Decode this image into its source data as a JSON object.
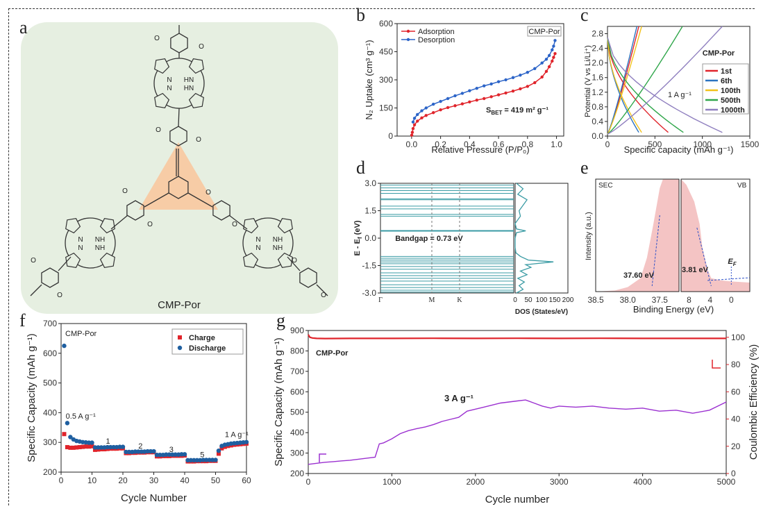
{
  "panel_letters": [
    "a",
    "b",
    "c",
    "d",
    "e",
    "f",
    "g"
  ],
  "panel_a": {
    "label": "CMP-Por",
    "atom_n": "N",
    "atom_hn": "HN",
    "atom_nh": "NH",
    "atom_o": "O"
  },
  "chart_data": [
    {
      "id": "b",
      "type": "line",
      "xlabel": "Relative Pressure (P/P₀)",
      "ylabel": "N₂ Uptake (cm³ g⁻¹)",
      "xlim": [
        -0.1,
        1.05
      ],
      "ylim": [
        0,
        600
      ],
      "xticks": [
        0.0,
        0.2,
        0.4,
        0.6,
        0.8,
        1.0
      ],
      "yticks": [
        0,
        150,
        300,
        450,
        600
      ],
      "tag": "CMP-Por",
      "annotation": "S",
      "annotation_sub": "BET",
      "annotation_rest": " = 419 m² g⁻¹",
      "legend": "top-left",
      "series": [
        {
          "name": "Adsorption",
          "color": "#e0242b",
          "x": [
            0.001,
            0.005,
            0.01,
            0.02,
            0.04,
            0.07,
            0.1,
            0.15,
            0.2,
            0.25,
            0.3,
            0.35,
            0.4,
            0.45,
            0.5,
            0.55,
            0.6,
            0.65,
            0.7,
            0.75,
            0.8,
            0.85,
            0.9,
            0.93,
            0.95,
            0.97,
            0.98,
            0.99
          ],
          "y": [
            5,
            20,
            40,
            60,
            80,
            97,
            110,
            125,
            140,
            152,
            162,
            172,
            182,
            192,
            200,
            210,
            220,
            230,
            240,
            252,
            265,
            285,
            315,
            345,
            370,
            400,
            420,
            440
          ]
        },
        {
          "name": "Desorption",
          "color": "#2c64c8",
          "x": [
            0.99,
            0.98,
            0.97,
            0.95,
            0.93,
            0.9,
            0.85,
            0.8,
            0.75,
            0.7,
            0.65,
            0.6,
            0.55,
            0.5,
            0.45,
            0.4,
            0.35,
            0.3,
            0.25,
            0.2,
            0.15,
            0.1,
            0.07,
            0.04,
            0.02,
            0.01
          ],
          "y": [
            510,
            480,
            460,
            430,
            410,
            390,
            360,
            340,
            325,
            312,
            300,
            290,
            278,
            268,
            255,
            242,
            228,
            215,
            200,
            185,
            170,
            150,
            135,
            115,
            95,
            75
          ]
        }
      ]
    },
    {
      "id": "c",
      "type": "line",
      "xlabel": "Specific capacity (mAh g⁻¹)",
      "ylabel": "Potential (V vs Li/Li⁺)",
      "xlim": [
        0,
        1500
      ],
      "ylim": [
        0,
        3.0
      ],
      "xticks": [
        0,
        500,
        1000,
        1500
      ],
      "yticks": [
        0.0,
        0.4,
        0.8,
        1.2,
        1.6,
        2.0,
        2.4,
        2.8
      ],
      "tag": "CMP-Por",
      "annotation": "1 A g⁻¹",
      "legend": "right",
      "series": [
        {
          "name": "1st",
          "color": "#e0242b",
          "discharge_end": 640,
          "charge_end": 330
        },
        {
          "name": "6th",
          "color": "#2c74c0",
          "discharge_end": 330,
          "charge_end": 310
        },
        {
          "name": "100th",
          "color": "#f2c21b",
          "discharge_end": 360,
          "charge_end": 360
        },
        {
          "name": "500th",
          "color": "#2fa64a",
          "discharge_end": 800,
          "charge_end": 790
        },
        {
          "name": "1000th",
          "color": "#8f7fbf",
          "discharge_end": 1210,
          "charge_end": 1210
        }
      ]
    },
    {
      "id": "d",
      "type": "line",
      "ylabel": "E - Eₓ (eV)",
      "ylabel_main": "E - E",
      "ylabel_sub": "f",
      "ylabel_unit": " (eV)",
      "ylim": [
        -3.0,
        3.0
      ],
      "yticks": [
        -3.0,
        -1.5,
        0.0,
        1.5,
        3.0
      ],
      "kpoints": [
        "Γ",
        "M",
        "K"
      ],
      "annotation": "Bandgap = 0.73 eV",
      "dos_xlabel": "DOS (States/eV)",
      "dos_xticks": [
        0,
        50,
        100,
        150,
        200
      ],
      "bands": [
        -2.95,
        -2.85,
        -2.7,
        -2.55,
        -2.35,
        -2.2,
        -2.05,
        -1.9,
        -1.7,
        -1.55,
        -1.4,
        -1.3,
        -1.2,
        -1.1,
        -1.0,
        0.38,
        0.42,
        1.2,
        1.3,
        1.6,
        1.75,
        2.1,
        2.15,
        2.45,
        2.6,
        2.75,
        2.9
      ],
      "dos": {
        "e": [
          -3.0,
          -2.8,
          -2.6,
          -2.4,
          -2.2,
          -2.0,
          -1.8,
          -1.6,
          -1.45,
          -1.3,
          -1.2,
          -1.0,
          -0.8,
          -0.5,
          0.0,
          0.3,
          0.4,
          0.5,
          0.8,
          1.2,
          1.5,
          1.8,
          2.1,
          2.4,
          2.7,
          3.0
        ],
        "v": [
          5,
          30,
          15,
          35,
          10,
          45,
          20,
          60,
          40,
          145,
          50,
          20,
          3,
          0,
          0,
          5,
          40,
          5,
          0,
          20,
          15,
          30,
          45,
          10,
          30,
          5
        ]
      }
    },
    {
      "id": "e",
      "type": "area",
      "xlabel": "Binding Energy (eV)",
      "ylabel": "Intensity (a.u.)",
      "left": {
        "label": "SEC",
        "xlim": [
          38.5,
          37.2
        ],
        "xticks": [
          38.5,
          38.0,
          37.5
        ],
        "annotation": "37.60 eV"
      },
      "right": {
        "label": "VB",
        "xlim": [
          9.5,
          -3.5
        ],
        "xticks": [
          8,
          4,
          0
        ],
        "annotation": "3.81 eV",
        "fermi": "E",
        "fermi_sub": "F"
      }
    },
    {
      "id": "f",
      "type": "scatter",
      "xlabel": "Cycle Number",
      "ylabel": "Specific Capacity (mAh g⁻¹)",
      "xlim": [
        0,
        60
      ],
      "ylim": [
        200,
        700
      ],
      "xticks": [
        0,
        10,
        20,
        30,
        40,
        50,
        60
      ],
      "yticks": [
        200,
        300,
        400,
        500,
        600,
        700
      ],
      "tag": "CMP-Por",
      "legend": "top-right",
      "rate_labels": [
        {
          "text": "0.5 A g⁻¹",
          "x": 1.5,
          "y": 380
        },
        {
          "text": "1",
          "x": 14.5,
          "y": 296
        },
        {
          "text": "2",
          "x": 25,
          "y": 280
        },
        {
          "text": "3",
          "x": 35,
          "y": 268
        },
        {
          "text": "5",
          "x": 45,
          "y": 250
        },
        {
          "text": "1 A g⁻¹",
          "x": 53,
          "y": 318
        }
      ],
      "series": [
        {
          "name": "Charge",
          "color": "#e0242b",
          "marker": "square",
          "x": [
            1,
            2,
            3,
            4,
            5,
            6,
            7,
            8,
            9,
            10,
            11,
            12,
            13,
            14,
            15,
            16,
            17,
            18,
            19,
            20,
            21,
            22,
            23,
            24,
            25,
            26,
            27,
            28,
            29,
            30,
            31,
            32,
            33,
            34,
            35,
            36,
            37,
            38,
            39,
            40,
            41,
            42,
            43,
            44,
            45,
            46,
            47,
            48,
            49,
            50,
            51,
            52,
            53,
            54,
            55,
            56,
            57,
            58,
            59,
            60
          ],
          "y": [
            328,
            284,
            282,
            282,
            283,
            284,
            285,
            286,
            286,
            287,
            275,
            276,
            277,
            277,
            278,
            279,
            279,
            279,
            280,
            280,
            264,
            264,
            265,
            265,
            266,
            266,
            266,
            267,
            267,
            267,
            253,
            253,
            254,
            254,
            254,
            255,
            255,
            255,
            255,
            256,
            236,
            236,
            236,
            237,
            237,
            237,
            237,
            238,
            238,
            238,
            262,
            280,
            285,
            288,
            290,
            292,
            293,
            294,
            295,
            296
          ]
        },
        {
          "name": "Discharge",
          "color": "#1f5fa0",
          "marker": "circle",
          "x": [
            1,
            2,
            3,
            4,
            5,
            6,
            7,
            8,
            9,
            10,
            11,
            12,
            13,
            14,
            15,
            16,
            17,
            18,
            19,
            20,
            21,
            22,
            23,
            24,
            25,
            26,
            27,
            28,
            29,
            30,
            31,
            32,
            33,
            34,
            35,
            36,
            37,
            38,
            39,
            40,
            41,
            42,
            43,
            44,
            45,
            46,
            47,
            48,
            49,
            50,
            51,
            52,
            53,
            54,
            55,
            56,
            57,
            58,
            59,
            60
          ],
          "y": [
            625,
            365,
            318,
            310,
            305,
            303,
            301,
            300,
            299,
            299,
            283,
            283,
            283,
            283,
            284,
            284,
            284,
            284,
            285,
            285,
            268,
            268,
            268,
            269,
            269,
            269,
            269,
            270,
            270,
            270,
            258,
            258,
            258,
            259,
            259,
            259,
            259,
            259,
            260,
            260,
            240,
            240,
            240,
            240,
            240,
            241,
            241,
            241,
            241,
            241,
            272,
            288,
            292,
            294,
            296,
            297,
            298,
            299,
            300,
            301
          ]
        }
      ]
    },
    {
      "id": "g",
      "type": "line",
      "xlabel": "Cycle number",
      "ylabel": "Specific Capacity (mAh g⁻¹)",
      "y2label": "Coulombic Efficiency (%)",
      "xlim": [
        0,
        5000
      ],
      "ylim": [
        200,
        900
      ],
      "y2lim": [
        0,
        105
      ],
      "xticks": [
        0,
        1000,
        2000,
        3000,
        4000,
        5000
      ],
      "yticks": [
        200,
        300,
        400,
        500,
        600,
        700,
        800,
        900
      ],
      "y2ticks": [
        0,
        20,
        40,
        60,
        80,
        100
      ],
      "tag": "CMP-Por",
      "annotation": "3 A g⁻¹",
      "series": [
        {
          "name": "Capacity",
          "color": "#9b30d0",
          "x": [
            0,
            100,
            200,
            300,
            400,
            500,
            600,
            700,
            800,
            850,
            900,
            1000,
            1100,
            1200,
            1300,
            1400,
            1500,
            1600,
            1700,
            1800,
            1900,
            2000,
            2100,
            2200,
            2300,
            2400,
            2500,
            2600,
            2700,
            2800,
            2900,
            3000,
            3200,
            3400,
            3600,
            3800,
            4000,
            4200,
            4400,
            4600,
            4800,
            5000
          ],
          "y": [
            245,
            250,
            255,
            258,
            262,
            265,
            270,
            275,
            280,
            345,
            350,
            370,
            395,
            410,
            420,
            428,
            440,
            455,
            465,
            475,
            505,
            515,
            525,
            535,
            545,
            550,
            555,
            560,
            545,
            530,
            520,
            530,
            525,
            530,
            520,
            515,
            520,
            505,
            510,
            495,
            510,
            550
          ]
        },
        {
          "name": "Coulombic Efficiency",
          "color": "#e0242b",
          "x": [
            0,
            20,
            50,
            100,
            200,
            500,
            1000,
            1500,
            2000,
            2500,
            3000,
            3500,
            4000,
            4500,
            5000
          ],
          "y": [
            102,
            100,
            99.5,
            99.2,
            99.1,
            99.2,
            99.2,
            99.3,
            99.2,
            99.3,
            99.2,
            99.3,
            99.2,
            99.2,
            99.2
          ]
        }
      ]
    }
  ]
}
